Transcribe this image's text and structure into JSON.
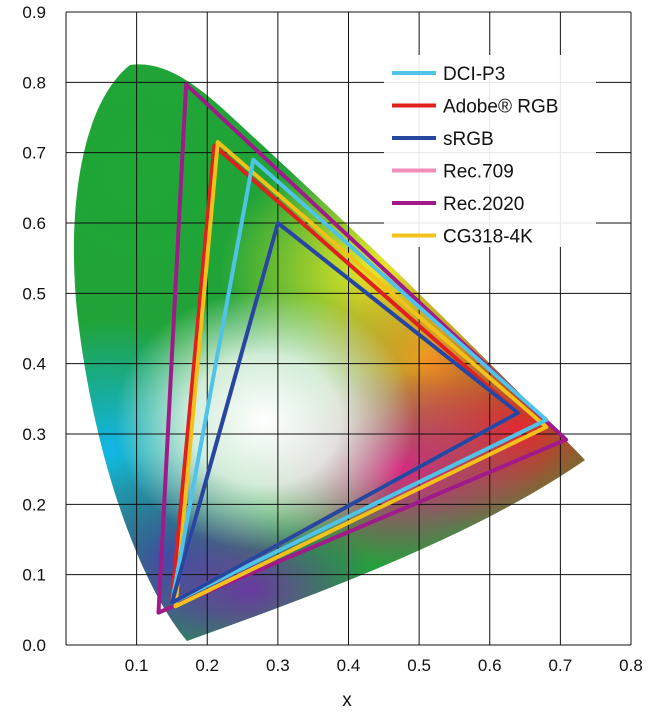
{
  "chart_data": {
    "type": "scatter",
    "title": "",
    "xlabel": "x",
    "ylabel": "",
    "xlim": [
      0,
      0.8
    ],
    "ylim": [
      0,
      0.9
    ],
    "x_ticks": [
      "0.1",
      "0.2",
      "0.3",
      "0.4",
      "0.5",
      "0.6",
      "0.7",
      "0.8"
    ],
    "y_ticks": [
      "0.0",
      "0.1",
      "0.2",
      "0.3",
      "0.4",
      "0.5",
      "0.6",
      "0.7",
      "0.8",
      "0.9"
    ],
    "grid": true,
    "legend_position": "top-right",
    "series": [
      {
        "name": "DCI-P3",
        "color": "#4fc3e8",
        "points": [
          [
            0.68,
            0.32
          ],
          [
            0.265,
            0.69
          ],
          [
            0.15,
            0.06
          ]
        ]
      },
      {
        "name": "Adobe® RGB",
        "color": "#e0201e",
        "points": [
          [
            0.64,
            0.33
          ],
          [
            0.21,
            0.71
          ],
          [
            0.15,
            0.06
          ]
        ]
      },
      {
        "name": "sRGB",
        "color": "#2547a0",
        "points": [
          [
            0.64,
            0.33
          ],
          [
            0.3,
            0.6
          ],
          [
            0.15,
            0.06
          ]
        ]
      },
      {
        "name": "Rec.709",
        "color": "#ef8eb6",
        "points": [
          [
            0.64,
            0.33
          ],
          [
            0.3,
            0.6
          ],
          [
            0.15,
            0.06
          ]
        ]
      },
      {
        "name": "Rec.2020",
        "color": "#a01a8a",
        "points": [
          [
            0.708,
            0.292
          ],
          [
            0.17,
            0.797
          ],
          [
            0.131,
            0.046
          ]
        ]
      },
      {
        "name": "CG318-4K",
        "color": "#f2c21b",
        "points": [
          [
            0.68,
            0.31
          ],
          [
            0.215,
            0.715
          ],
          [
            0.155,
            0.055
          ]
        ]
      }
    ]
  }
}
